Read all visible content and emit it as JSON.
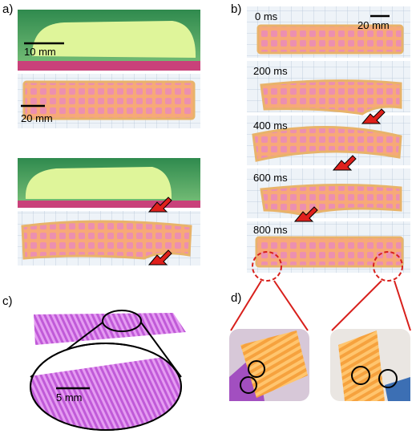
{
  "panel_a": {
    "label": "a)",
    "scale_caterpillar": "10 mm",
    "scale_robot": "20 mm"
  },
  "panel_b": {
    "label": "b)",
    "scale": "20 mm",
    "frames": [
      "0 ms",
      "200 ms",
      "400 ms",
      "600 ms",
      "800 ms"
    ]
  },
  "panel_c": {
    "label": "c)",
    "scale": "5 mm"
  },
  "panel_d": {
    "label": "d)"
  }
}
